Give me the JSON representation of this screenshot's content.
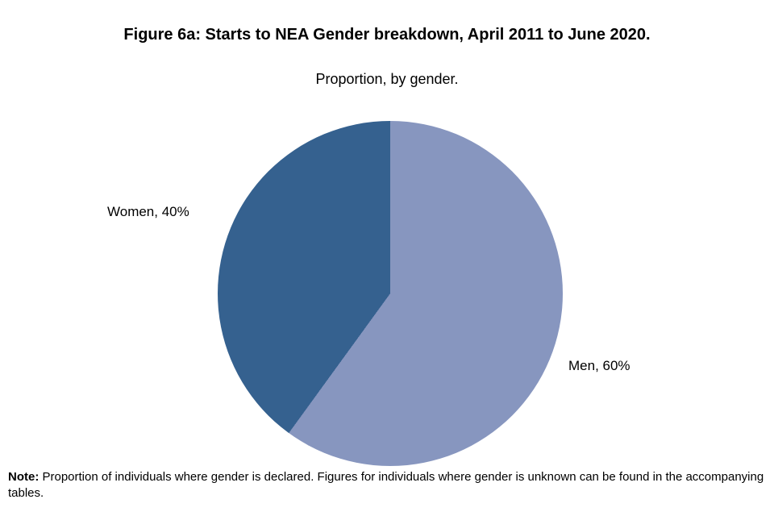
{
  "title": "Figure 6a: Starts to NEA Gender breakdown, April 2011 to June 2020.",
  "subtitle": "Proportion, by gender.",
  "note": {
    "label": "Note:",
    "text": " Proportion of individuals  where gender is declared. Figures for individuals  where gender is unknown can be found in the accompanying tables."
  },
  "chart_data": {
    "type": "pie",
    "title": "Figure 6a: Starts to NEA Gender breakdown, April 2011 to June 2020.",
    "subtitle": "Proportion, by gender.",
    "start_angle_deg": 0,
    "direction": "clockwise",
    "legend": "none",
    "data_labels": "outside",
    "slices": [
      {
        "label": "Men",
        "value": 60,
        "display": "Men, 60%",
        "color": "#8796BF"
      },
      {
        "label": "Women",
        "value": 40,
        "display": "Women, 40%",
        "color": "#35618F"
      }
    ]
  }
}
